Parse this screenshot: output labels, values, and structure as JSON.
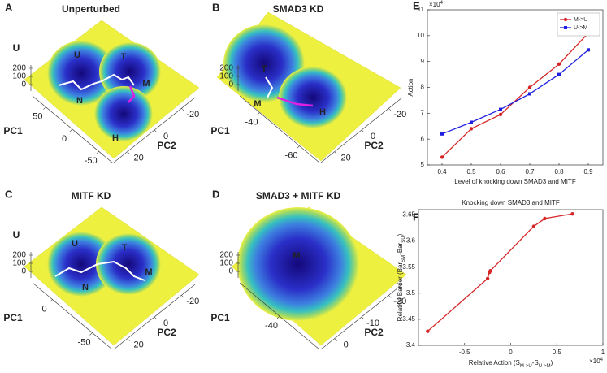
{
  "chart_data": [
    {
      "type": "surface",
      "panel": "A",
      "title": "Unperturbed",
      "zlabel": "U",
      "zticks": [
        200,
        100,
        0
      ],
      "xlabel": "PC1",
      "xticks": [
        50,
        0,
        -50
      ],
      "ylabel": "PC2",
      "yticks": [
        -20,
        0,
        20
      ],
      "states": [
        "U",
        "N",
        "T",
        "M",
        "H"
      ]
    },
    {
      "type": "surface",
      "panel": "B",
      "title": "SMAD3 KD",
      "zticks": [
        200,
        100,
        0
      ],
      "xlabel": "PC1",
      "xticks": [
        -40,
        -60
      ],
      "ylabel": "PC2",
      "yticks": [
        -20,
        0,
        20
      ],
      "states": [
        "T",
        "M",
        "H"
      ]
    },
    {
      "type": "surface",
      "panel": "C",
      "title": "MITF KD",
      "zlabel": "U",
      "zticks": [
        200,
        100,
        0
      ],
      "xlabel": "PC1",
      "xticks": [
        0,
        -50
      ],
      "ylabel": "PC2",
      "yticks": [
        -20,
        0,
        20
      ],
      "states": [
        "U",
        "T",
        "M",
        "N"
      ]
    },
    {
      "type": "surface",
      "panel": "D",
      "title": "SMAD3 + MITF KD",
      "zticks": [
        200,
        100,
        0
      ],
      "xlabel": "PC1",
      "xticks": [
        -40
      ],
      "ylabel": "PC2",
      "yticks": [
        -20,
        -10,
        0
      ],
      "states": [
        "M"
      ]
    },
    {
      "type": "line",
      "panel": "E",
      "ylabel": "Action",
      "xlabel": "Level of knocking down SMAD3 and MITF",
      "y_multiplier": {
        "base": "×10",
        "exponent": 4
      },
      "x": [
        0.4,
        0.5,
        0.6,
        0.7,
        0.8,
        0.9
      ],
      "series": [
        {
          "name": "M->U",
          "color": "#d62728",
          "marker": "circle",
          "values": [
            5.3,
            6.4,
            6.95,
            8.0,
            8.9,
            10.1
          ]
        },
        {
          "name": "U->M",
          "color": "#1f1fe0",
          "marker": "square",
          "values": [
            6.2,
            6.65,
            7.15,
            7.75,
            8.5,
            9.45
          ]
        }
      ],
      "xlim": [
        0.35,
        0.95
      ],
      "xticks": [
        0.4,
        0.5,
        0.6,
        0.7,
        0.8,
        0.9
      ],
      "ylim": [
        5,
        11
      ],
      "yticks": [
        5,
        6,
        7,
        8,
        9,
        10,
        11
      ],
      "legend": "upper right",
      "grid": false
    },
    {
      "type": "line",
      "panel": "F",
      "title": "Knocking down SMAD3 and MITF",
      "ylabel_parts": [
        "Relative Barrier (Bar",
        "SM",
        "-Bar",
        "SU",
        ")"
      ],
      "xlabel_parts": [
        "Relative Action (S",
        "M->U",
        "-S",
        "U->M",
        ")"
      ],
      "x_multiplier": {
        "base": "×10",
        "exponent": 4
      },
      "x": [
        -0.9,
        -0.25,
        -0.23,
        -0.22,
        0.25,
        0.37,
        0.67
      ],
      "series": [
        {
          "color": "#d62728",
          "marker": "circle",
          "values": [
            3.427,
            3.528,
            3.54,
            3.543,
            3.628,
            3.643,
            3.652
          ]
        }
      ],
      "xlim": [
        -1,
        1
      ],
      "xticks": [
        -0.5,
        0,
        0.5,
        1
      ],
      "ylim": [
        3.4,
        3.66
      ],
      "yticks": [
        3.4,
        3.45,
        3.5,
        3.55,
        3.6,
        3.65
      ],
      "grid": false
    }
  ]
}
